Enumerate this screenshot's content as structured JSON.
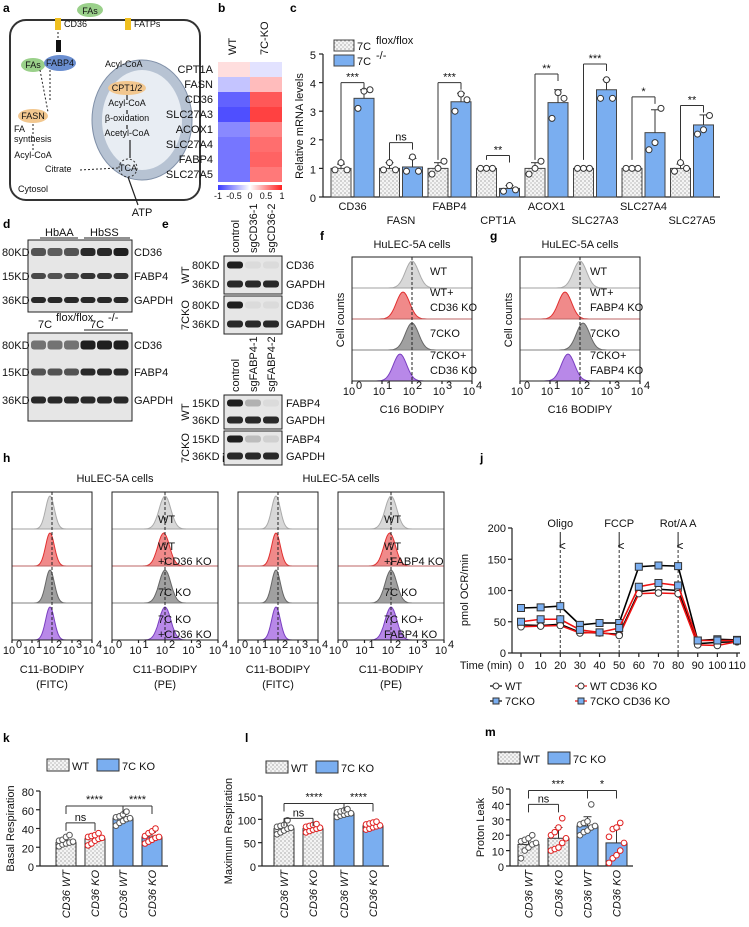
{
  "panel_labels": [
    "a",
    "b",
    "c",
    "d",
    "e",
    "f",
    "g",
    "h",
    "i",
    "j",
    "k",
    "l",
    "m"
  ],
  "diagram": {
    "fas_out": "FAs",
    "cd36": "CD36",
    "fatps": "FATPs",
    "fas_in": "FAs",
    "fabp4": "FABP4",
    "acyl_coa_1": "Acyl-CoA",
    "cpt": "CPT1/2",
    "acyl_coa_2": "Acyl-CoA",
    "beta_ox": "β-oxidation",
    "acetyl_coa": "Acetyl-CoA",
    "tca": "TCA",
    "fa_synthesis_1": "FA",
    "fa_synthesis_2": "synthesis",
    "fasn": "FASN",
    "acyl_coa_3": "Acyl-CoA",
    "citrate": "Citrate",
    "cytosol": "Cytosol",
    "atp": "ATP"
  },
  "heatmap": {
    "columns": [
      "WT",
      "7C-KO"
    ],
    "rows": [
      "CPT1A",
      "FASN",
      "CD36",
      "SLC27A3",
      "ACOX1",
      "SLC27A4",
      "FABP4",
      "SLC27A5"
    ],
    "values": [
      [
        0.15,
        -0.15
      ],
      [
        -0.3,
        0.3
      ],
      [
        -0.8,
        0.75
      ],
      [
        -0.9,
        0.85
      ],
      [
        -0.6,
        0.55
      ],
      [
        -0.7,
        0.65
      ],
      [
        -0.7,
        0.7
      ],
      [
        -0.7,
        0.6
      ]
    ],
    "colorbar_ticks": [
      "-1",
      "-0.5",
      "0",
      "0.5",
      "1"
    ],
    "colors": {
      "low": "#3b3bff",
      "mid": "#ffffff",
      "high": "#ff2020"
    }
  },
  "blots": {
    "d_top": {
      "groups": [
        "HbAA",
        "HbSS"
      ],
      "markers": [
        "80KD",
        "15KD",
        "36KD"
      ],
      "proteins": [
        "CD36",
        "FABP4",
        "GAPDH"
      ],
      "band_intensity": [
        [
          0.7,
          0.65,
          0.7,
          0.9,
          0.9,
          0.95
        ],
        [
          0.75,
          0.7,
          0.75,
          0.85,
          0.85,
          0.85
        ],
        [
          0.9,
          0.9,
          0.9,
          0.9,
          0.9,
          0.9
        ]
      ]
    },
    "d_bottom": {
      "groups": [
        "7C",
        "flox/flox",
        "7C",
        "-/-"
      ],
      "markers": [
        "80KD",
        "15KD",
        "36KD"
      ],
      "proteins": [
        "CD36",
        "FABP4",
        "GAPDH"
      ],
      "band_intensity": [
        [
          0.55,
          0.55,
          0.55,
          0.95,
          0.95,
          0.95
        ],
        [
          0.7,
          0.7,
          0.7,
          0.9,
          0.9,
          0.9
        ],
        [
          0.9,
          0.9,
          0.9,
          0.9,
          0.9,
          0.9
        ]
      ]
    },
    "e_top": {
      "lanes": [
        "control",
        "sgCD36-1",
        "sgCD36-2"
      ],
      "rows": [
        "WT",
        "7CKO"
      ],
      "markers": [
        "80KD",
        "36KD",
        "80KD",
        "36KD"
      ],
      "proteins": [
        "CD36",
        "GAPDH",
        "CD36",
        "GAPDH"
      ],
      "band_intensity": [
        [
          0.95,
          0.05,
          0.05
        ],
        [
          0.9,
          0.9,
          0.9
        ],
        [
          0.95,
          0.05,
          0.05
        ],
        [
          0.9,
          0.9,
          0.9
        ]
      ]
    },
    "e_bottom": {
      "lanes": [
        "control",
        "sgFABP4-1",
        "sgFABP4-2"
      ],
      "rows": [
        "WT",
        "7CKO"
      ],
      "markers": [
        "15KD",
        "36KD",
        "15KD",
        "36KD"
      ],
      "proteins": [
        "FABP4",
        "GAPDH",
        "FABP4",
        "GAPDH"
      ],
      "band_intensity": [
        [
          0.95,
          0.25,
          0.05
        ],
        [
          0.9,
          0.9,
          0.9
        ],
        [
          0.95,
          0.2,
          0.1
        ],
        [
          0.9,
          0.9,
          0.9
        ]
      ]
    }
  },
  "flow": {
    "title": "HuLEC-5A cells",
    "f": {
      "ylabel": "Cell counts",
      "xlabel": "C16 BODIPY",
      "tracks": [
        "WT",
        "WT+",
        "CD36 KO",
        "7CKO",
        "7CKO+",
        "CD36 KO"
      ],
      "peak_log10": [
        2.0,
        1.7,
        2.0,
        1.6
      ]
    },
    "g": {
      "ylabel": "Cell counts",
      "xlabel": "C16 BODIPY",
      "tracks": [
        "WT",
        "WT+",
        "FABP4 KO",
        "7CKO",
        "7CKO+",
        "FABP4 KO"
      ],
      "peak_log10": [
        2.0,
        1.5,
        2.1,
        1.6
      ]
    },
    "h": {
      "xlabel_1": "C11-BODIPY",
      "xlabel_1b": "(FITC)",
      "xlabel_2": "C11-BODIPY",
      "xlabel_2b": "(PE)",
      "tracks": [
        "WT",
        "WT",
        "+CD36 KO",
        "7C KO",
        "7C KO",
        "+CD36 KO"
      ],
      "peak_fitc": [
        1.9,
        1.9,
        1.9,
        1.9
      ],
      "peak_pe": [
        2.0,
        1.95,
        2.0,
        2.0
      ]
    },
    "i": {
      "xlabel_1": "C11-BODIPY",
      "xlabel_1b": "(FITC)",
      "xlabel_2": "C11-BODIPY",
      "xlabel_2b": "(PE)",
      "tracks": [
        "WT",
        "WT",
        "+FABP4 KO",
        "7C KO",
        "7C KO+",
        "FABP4 KO"
      ],
      "peak_fitc": [
        1.9,
        1.9,
        1.9,
        1.9
      ],
      "peak_pe": [
        2.0,
        1.95,
        2.0,
        2.0
      ]
    },
    "ticks": [
      "10",
      "10",
      "10",
      "10",
      "10"
    ],
    "tick_exp": [
      "0",
      "1",
      "2",
      "3",
      "4"
    ],
    "colors": [
      "#d8d8d8",
      "#f08a8a",
      "#a0a0a0",
      "#b888e8"
    ],
    "strokes": [
      "#aaaaaa",
      "#e03030",
      "#666666",
      "#7a3fc0"
    ]
  },
  "chart_data": [
    {
      "id": "c",
      "type": "bar",
      "ylabel": "Relative mRNA levels",
      "ylim": [
        0,
        5
      ],
      "yticks": [
        "0",
        "1",
        "2",
        "3",
        "4",
        "5"
      ],
      "categories": [
        "CD36",
        "FASN",
        "FABP4",
        "CPT1A",
        "ACOX1",
        "SLC27A3",
        "SLC27A4",
        "SLC27A5"
      ],
      "legend": [
        {
          "name": "7C",
          "sup": "flox/flox"
        },
        {
          "name": "7C",
          "sup": "-/-"
        }
      ],
      "series": [
        {
          "name": "7C flox/flox",
          "values": [
            1,
            1,
            1,
            1,
            1,
            1,
            1,
            1
          ],
          "sd": [
            0.15,
            0.2,
            0.2,
            0.05,
            0.2,
            0.05,
            0.05,
            0.15
          ],
          "points": [
            [
              0.95,
              1.2,
              0.95
            ],
            [
              0.95,
              1.2,
              0.95
            ],
            [
              0.8,
              1.0,
              1.25
            ],
            [
              1,
              1,
              1
            ],
            [
              0.8,
              1.0,
              1.25
            ],
            [
              1,
              1,
              1
            ],
            [
              1,
              1,
              1
            ],
            [
              0.9,
              1.2,
              1.0
            ]
          ]
        },
        {
          "name": "7C -/-",
          "values": [
            3.45,
            1.05,
            3.33,
            0.3,
            3.3,
            3.75,
            2.25,
            2.52
          ],
          "sd": [
            0.3,
            0.3,
            0.3,
            0.1,
            0.45,
            0.35,
            0.8,
            0.35
          ],
          "points": [
            [
              3.1,
              3.7,
              3.75
            ],
            [
              0.9,
              1.4,
              0.9
            ],
            [
              3.0,
              3.6,
              3.4
            ],
            [
              0.2,
              0.4,
              0.25
            ],
            [
              2.75,
              3.65,
              3.45
            ],
            [
              3.45,
              4.1,
              3.45
            ],
            [
              1.65,
              1.9,
              3.1
            ],
            [
              2.2,
              2.35,
              2.85
            ]
          ]
        }
      ],
      "significance": [
        "***",
        "ns",
        "***",
        "**",
        "**",
        "***",
        "*",
        "**"
      ],
      "bracket_levels": [
        4.0,
        1.9,
        4.0,
        1.45,
        4.3,
        4.65,
        3.5,
        3.2
      ]
    },
    {
      "id": "j",
      "type": "line",
      "ylabel": "pmol OCR/min",
      "xlabel": "Time (min)",
      "ylim": [
        0,
        200
      ],
      "yticks": [
        "0",
        "50",
        "100",
        "150",
        "200"
      ],
      "x": [
        0,
        10,
        20,
        30,
        40,
        50,
        60,
        70,
        80,
        90,
        100,
        110
      ],
      "xticks": [
        "0",
        "10",
        "20",
        "30",
        "40",
        "50",
        "60",
        "70",
        "80",
        "90",
        "100",
        "110"
      ],
      "annotations": [
        {
          "x": 20,
          "label": "Oligo"
        },
        {
          "x": 50,
          "label": "FCCP"
        },
        {
          "x": 80,
          "label": "Rot/A A"
        }
      ],
      "series": [
        {
          "name": "WT",
          "marker": "circle",
          "line": "#000000",
          "fill": "#ffffff",
          "values": [
            45,
            44,
            46,
            33,
            32,
            30,
            98,
            102,
            100,
            15,
            17,
            18
          ]
        },
        {
          "name": "WT CD36 KO",
          "marker": "circle",
          "line": "#ee1111",
          "fill": "#ffffff",
          "values": [
            42,
            43,
            44,
            32,
            33,
            28,
            95,
            96,
            95,
            13,
            12,
            18
          ]
        },
        {
          "name": "7CKO",
          "marker": "square",
          "line": "#000000",
          "fill": "#7aaef0",
          "values": [
            72,
            73,
            75,
            45,
            48,
            48,
            138,
            140,
            139,
            20,
            22,
            21
          ]
        },
        {
          "name": "7CKO CD36 KO",
          "marker": "square",
          "line": "#ee1111",
          "fill": "#7aaef0",
          "values": [
            50,
            54,
            54,
            37,
            33,
            40,
            106,
            112,
            108,
            20,
            20,
            20
          ]
        }
      ]
    },
    {
      "id": "k",
      "type": "bar",
      "ylabel": "Basal Respiration",
      "ylim": [
        0,
        80
      ],
      "yticks": [
        "0",
        "20",
        "40",
        "60",
        "80"
      ],
      "categories": [
        "CD36 WT",
        "CD36 KO",
        "CD36 WT",
        "CD36 KO"
      ],
      "legend": [
        "WT",
        "7C KO"
      ],
      "values": [
        25,
        29,
        51,
        31
      ],
      "sd": [
        2.5,
        3,
        4,
        5
      ],
      "points": [
        [
          21,
          23,
          24,
          25,
          26,
          27,
          28,
          31,
          33
        ],
        [
          22,
          24,
          27,
          29,
          30,
          31,
          32,
          33,
          35
        ],
        [
          43,
          46,
          48,
          50,
          51,
          52,
          53,
          55,
          58
        ],
        [
          24,
          26,
          28,
          30,
          31,
          32,
          35,
          37,
          40
        ]
      ],
      "significance": [
        {
          "a": 0,
          "b": 1,
          "label": "ns",
          "level": 46
        },
        {
          "a": 0,
          "b": 2,
          "label": "****",
          "level": 64
        },
        {
          "a": 2,
          "b": 3,
          "label": "****",
          "level": 64
        }
      ]
    },
    {
      "id": "l",
      "type": "bar",
      "ylabel": "Maximum Respiration",
      "ylim": [
        0,
        150
      ],
      "yticks": [
        "0",
        "50",
        "100",
        "150"
      ],
      "categories": [
        "CD36 WT",
        "CD36 KO",
        "CD36 WT",
        "CD36 KO"
      ],
      "legend": [
        "WT",
        "7C KO"
      ],
      "values": [
        80,
        80,
        113,
        86
      ],
      "sd": [
        8,
        6,
        5,
        5
      ],
      "points": [
        [
          68,
          72,
          76,
          80,
          82,
          84,
          86,
          88,
          98
        ],
        [
          72,
          75,
          78,
          80,
          82,
          84,
          86,
          88,
          90
        ],
        [
          105,
          108,
          110,
          112,
          113,
          115,
          117,
          119,
          122
        ],
        [
          78,
          80,
          83,
          85,
          87,
          89,
          91,
          93,
          95
        ]
      ],
      "significance": [
        {
          "a": 0,
          "b": 1,
          "label": "ns",
          "level": 102
        },
        {
          "a": 0,
          "b": 2,
          "label": "****",
          "level": 134
        },
        {
          "a": 2,
          "b": 3,
          "label": "****",
          "level": 134
        }
      ]
    },
    {
      "id": "m",
      "type": "bar",
      "ylabel": "Proton Leak",
      "ylim": [
        0,
        50
      ],
      "yticks": [
        "0",
        "10",
        "20",
        "30",
        "40",
        "50"
      ],
      "categories": [
        "CD36 WT",
        "CD36 KO",
        "CD36 WT",
        "CD36 KO"
      ],
      "legend": [
        "WT",
        "7C KO"
      ],
      "values": [
        14,
        18,
        26,
        15
      ],
      "sd": [
        4,
        7,
        6,
        9
      ],
      "points": [
        [
          5,
          10,
          12,
          14,
          15,
          16,
          17,
          18,
          20
        ],
        [
          10,
          11,
          12,
          15,
          18,
          20,
          22,
          25,
          31
        ],
        [
          20,
          22,
          23,
          25,
          26,
          27,
          28,
          29,
          40
        ],
        [
          2,
          5,
          7,
          10,
          15,
          19,
          24,
          25,
          28
        ]
      ],
      "significance": [
        {
          "a": 0,
          "b": 1,
          "label": "ns",
          "level": 40
        },
        {
          "a": 0,
          "b": 2,
          "label": "***",
          "level": 49
        },
        {
          "a": 2,
          "b": 3,
          "label": "*",
          "level": 49
        }
      ]
    }
  ]
}
